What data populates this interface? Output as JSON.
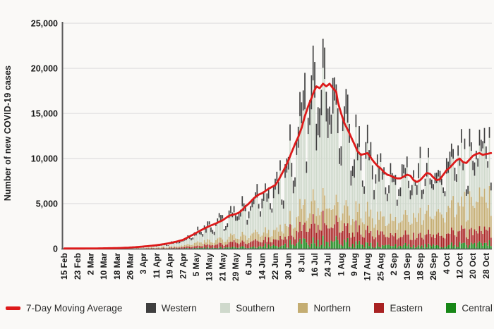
{
  "chart_data": {
    "type": "bar",
    "stacked": true,
    "title": "",
    "xlabel": "",
    "ylabel": "Number of new COVID-19 cases",
    "ylim": [
      0,
      25000
    ],
    "y_ticks": [
      0,
      5000,
      10000,
      15000,
      20000,
      25000
    ],
    "y_tick_labels": [
      "0",
      "5,000",
      "10,000",
      "15,000",
      "20,000",
      "25,000"
    ],
    "x_tick_labels": [
      "15 Feb",
      "23 Feb",
      "2 Mar",
      "10 Mar",
      "18 Mar",
      "26 Mar",
      "3 Apr",
      "11 Apr",
      "19 Apr",
      "27 Apr",
      "5 May",
      "13 May",
      "21 May",
      "29 May",
      "6 Jun",
      "14 Jun",
      "22 Jun",
      "30 Jun",
      "8 Jul",
      "16 Jul",
      "24 Jul",
      "1 Aug",
      "9 Aug",
      "17 Aug",
      "25 Aug",
      "2 Sep",
      "10 Sep",
      "18 Sep",
      "26 Sep",
      "4 Oct",
      "12 Oct",
      "20 Oct",
      "28 Oct"
    ],
    "x_tick_interval_days": 8,
    "days_total": 260,
    "grid": "horizontal",
    "legend_position": "bottom",
    "axis_color": "#595959",
    "grid_color": "#d8d8d8",
    "moving_average": {
      "label": "7-Day Moving Average",
      "color": "#dd1a1a",
      "anchors": [
        [
          0,
          20
        ],
        [
          10,
          25
        ],
        [
          20,
          35
        ],
        [
          30,
          60
        ],
        [
          36,
          90
        ],
        [
          40,
          130
        ],
        [
          44,
          180
        ],
        [
          48,
          240
        ],
        [
          52,
          310
        ],
        [
          56,
          390
        ],
        [
          60,
          490
        ],
        [
          64,
          620
        ],
        [
          68,
          780
        ],
        [
          72,
          980
        ],
        [
          76,
          1350
        ],
        [
          80,
          1750
        ],
        [
          84,
          2150
        ],
        [
          88,
          2500
        ],
        [
          92,
          2800
        ],
        [
          96,
          3150
        ],
        [
          100,
          3650
        ],
        [
          104,
          3850
        ],
        [
          106,
          4000
        ],
        [
          108,
          4300
        ],
        [
          110,
          4700
        ],
        [
          112,
          5000
        ],
        [
          114,
          5400
        ],
        [
          116,
          5750
        ],
        [
          118,
          6000
        ],
        [
          120,
          6150
        ],
        [
          122,
          6400
        ],
        [
          124,
          6650
        ],
        [
          126,
          6850
        ],
        [
          128,
          7050
        ],
        [
          130,
          7600
        ],
        [
          132,
          8300
        ],
        [
          134,
          9000
        ],
        [
          136,
          9800
        ],
        [
          138,
          10700
        ],
        [
          140,
          11600
        ],
        [
          142,
          12400
        ],
        [
          144,
          13400
        ],
        [
          146,
          14700
        ],
        [
          148,
          15800
        ],
        [
          150,
          16700
        ],
        [
          151,
          17200
        ],
        [
          153,
          18000
        ],
        [
          155,
          17800
        ],
        [
          157,
          18300
        ],
        [
          159,
          18000
        ],
        [
          161,
          18300
        ],
        [
          163,
          17800
        ],
        [
          165,
          17400
        ],
        [
          166,
          16300
        ],
        [
          168,
          15000
        ],
        [
          170,
          13900
        ],
        [
          172,
          13200
        ],
        [
          174,
          12400
        ],
        [
          176,
          11600
        ],
        [
          178,
          10800
        ],
        [
          180,
          10400
        ],
        [
          182,
          10500
        ],
        [
          184,
          10600
        ],
        [
          186,
          10100
        ],
        [
          188,
          9600
        ],
        [
          190,
          9200
        ],
        [
          192,
          8900
        ],
        [
          194,
          8500
        ],
        [
          196,
          8200
        ],
        [
          198,
          8100
        ],
        [
          200,
          7900
        ],
        [
          202,
          7800
        ],
        [
          204,
          7800
        ],
        [
          206,
          8000
        ],
        [
          208,
          8200
        ],
        [
          210,
          8100
        ],
        [
          212,
          7600
        ],
        [
          214,
          7400
        ],
        [
          216,
          7600
        ],
        [
          218,
          8000
        ],
        [
          220,
          8400
        ],
        [
          222,
          8300
        ],
        [
          224,
          7900
        ],
        [
          226,
          7600
        ],
        [
          228,
          7700
        ],
        [
          230,
          8200
        ],
        [
          232,
          8700
        ],
        [
          234,
          9000
        ],
        [
          236,
          9400
        ],
        [
          238,
          9800
        ],
        [
          240,
          10000
        ],
        [
          242,
          9600
        ],
        [
          244,
          9500
        ],
        [
          246,
          9900
        ],
        [
          248,
          10300
        ],
        [
          250,
          10500
        ],
        [
          252,
          10600
        ],
        [
          254,
          10400
        ],
        [
          256,
          10500
        ],
        [
          259,
          10600
        ]
      ]
    },
    "series": [
      {
        "name": "Western",
        "color": "#3f3f3f"
      },
      {
        "name": "Southern",
        "color": "#cfd9cc"
      },
      {
        "name": "Northern",
        "color": "#c4ad72"
      },
      {
        "name": "Eastern",
        "color": "#a92222"
      },
      {
        "name": "Central",
        "color": "#178717"
      }
    ],
    "composition_anchors": {
      "days": [
        0,
        50,
        90,
        130,
        160,
        190,
        215,
        240,
        259
      ],
      "Western": [
        0.3,
        0.2,
        0.16,
        0.15,
        0.16,
        0.13,
        0.12,
        0.11,
        0.11
      ],
      "Southern": [
        0.35,
        0.42,
        0.5,
        0.58,
        0.57,
        0.5,
        0.45,
        0.42,
        0.42
      ],
      "Northern": [
        0.2,
        0.22,
        0.18,
        0.13,
        0.13,
        0.2,
        0.26,
        0.3,
        0.3
      ],
      "Eastern": [
        0.12,
        0.13,
        0.13,
        0.11,
        0.11,
        0.14,
        0.14,
        0.14,
        0.14
      ],
      "Central": [
        0.03,
        0.03,
        0.03,
        0.03,
        0.03,
        0.03,
        0.03,
        0.03,
        0.03
      ]
    },
    "daily_peaks": [
      [
        146,
        19500
      ],
      [
        152,
        20700
      ],
      [
        158,
        22300
      ],
      [
        164,
        19000
      ],
      [
        216,
        11300
      ],
      [
        246,
        13300
      ],
      [
        252,
        13200
      ],
      [
        258,
        13500
      ]
    ],
    "weekly_pattern": [
      0.75,
      0.95,
      1.1,
      1.15,
      1.12,
      1.05,
      0.8
    ]
  }
}
